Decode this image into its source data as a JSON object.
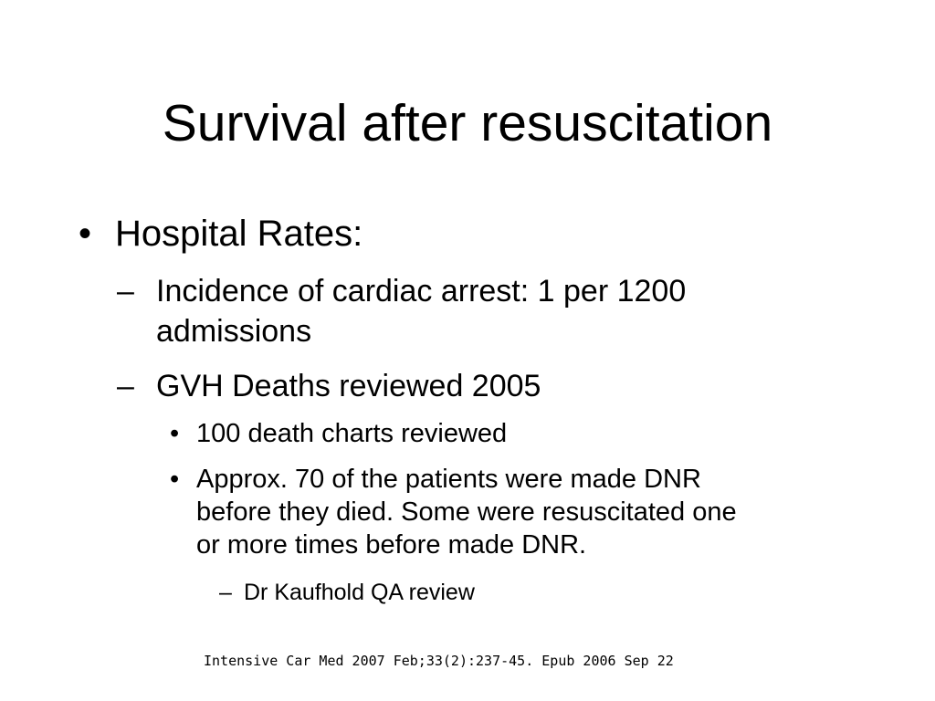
{
  "slide": {
    "title": "Survival after resuscitation",
    "bullet": {
      "mark": "•",
      "label": "Hospital Rates:",
      "sub_items": [
        {
          "mark": "–",
          "line1": "Incidence of cardiac arrest:  1 per 1200",
          "line2": "admissions"
        },
        {
          "mark": "–",
          "line1": "GVH Deaths reviewed 2005",
          "sub_items": [
            {
              "mark": "•",
              "line1": "100 death charts reviewed"
            },
            {
              "mark": "•",
              "line1": "Approx. 70 of the patients were made DNR",
              "line2": "before they died.  Some were resuscitated one",
              "line3": "or more times before made DNR.",
              "sub_items": [
                {
                  "mark": "–",
                  "line1": "Dr Kaufhold QA review"
                }
              ]
            }
          ]
        }
      ]
    },
    "citation": "Intensive Car Med 2007 Feb;33(2):237-45. Epub 2006 Sep 22"
  }
}
